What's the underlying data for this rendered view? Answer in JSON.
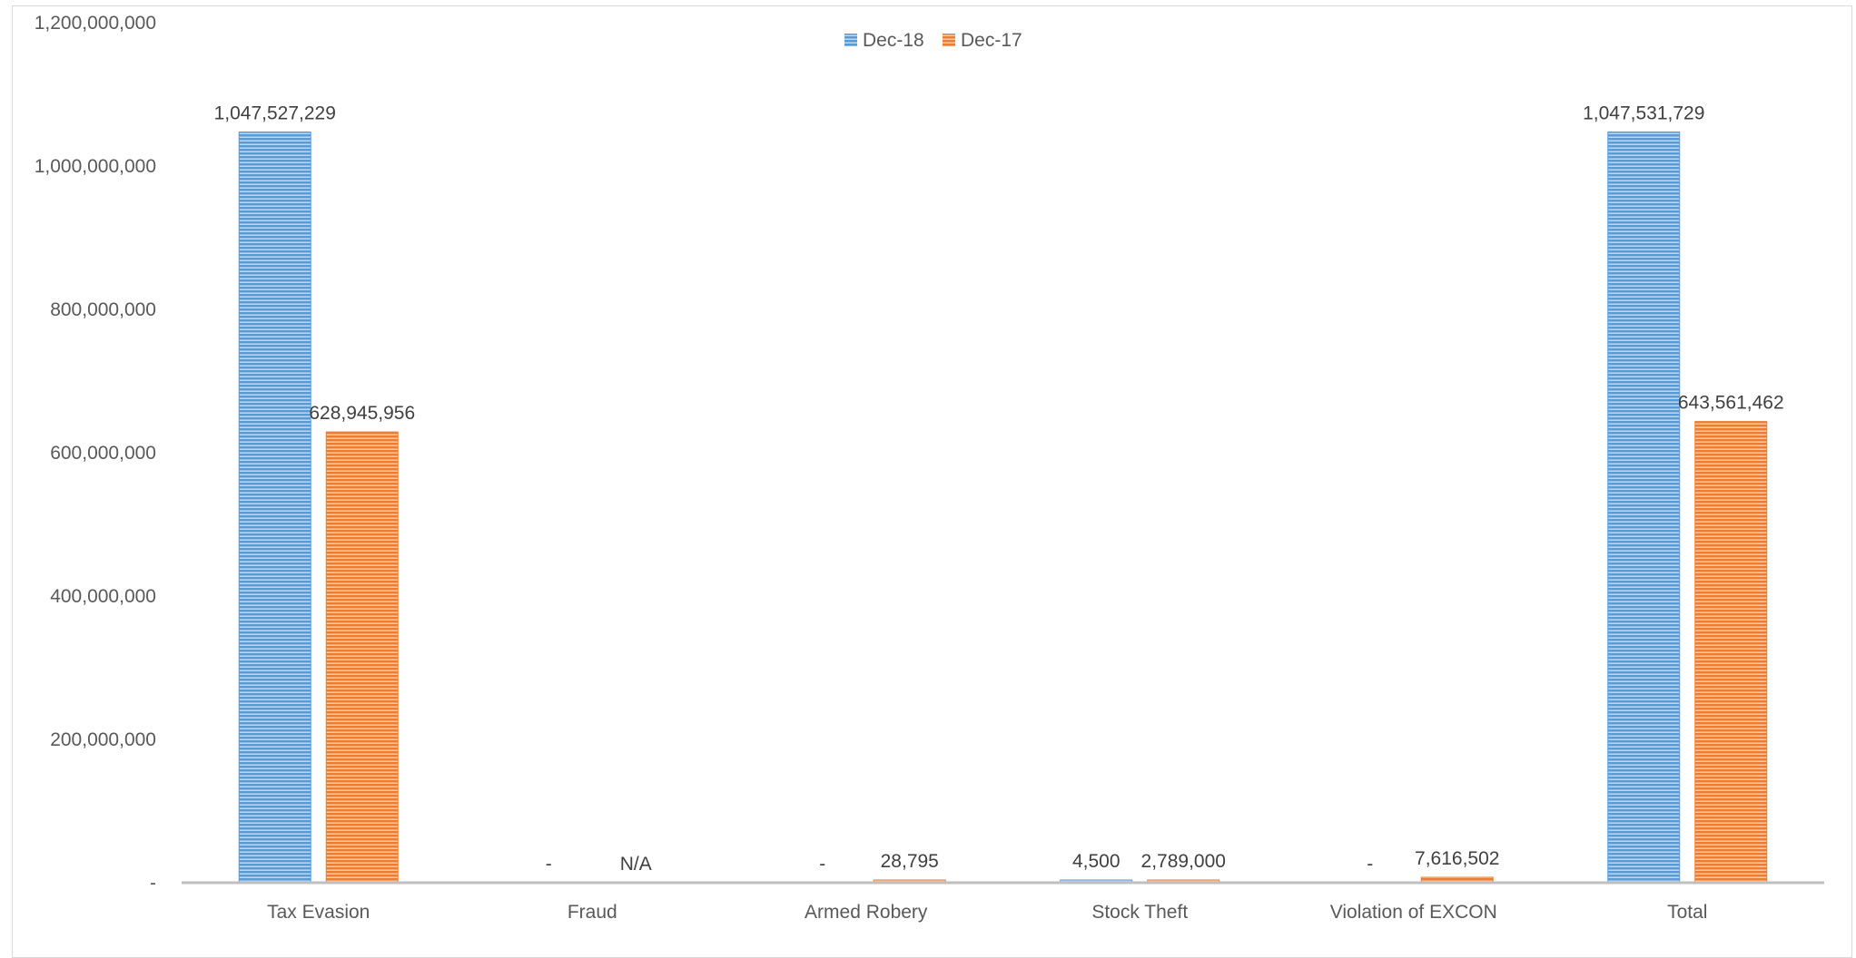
{
  "chart_data": {
    "type": "bar",
    "categories": [
      "Tax Evasion",
      "Fraud",
      "Armed Robery",
      "Stock Theft",
      "Violation of EXCON",
      "Total"
    ],
    "series": [
      {
        "name": "Dec-18",
        "color": "#5b9bd5",
        "values": [
          1047527229,
          0,
          0,
          4500,
          0,
          1047531729
        ],
        "labels": [
          "1,047,527,229",
          "-",
          "-",
          "4,500",
          "-",
          "1,047,531,729"
        ]
      },
      {
        "name": "Dec-17",
        "color": "#ed7d31",
        "values": [
          628945956,
          0,
          28795,
          2789000,
          7616502,
          643561462
        ],
        "labels": [
          "628,945,956",
          "N/A",
          "28,795",
          "2,789,000",
          "7,616,502",
          "643,561,462"
        ]
      }
    ],
    "ylim": [
      0,
      1200000000
    ],
    "yticks": [
      0,
      200000000,
      400000000,
      600000000,
      800000000,
      1000000000,
      1200000000
    ],
    "ytick_labels": [
      "-",
      "200,000,000",
      "400,000,000",
      "600,000,000",
      "800,000,000",
      "1,000,000,000",
      "1,200,000,000"
    ],
    "legend_position": "top-center",
    "grid": false
  }
}
